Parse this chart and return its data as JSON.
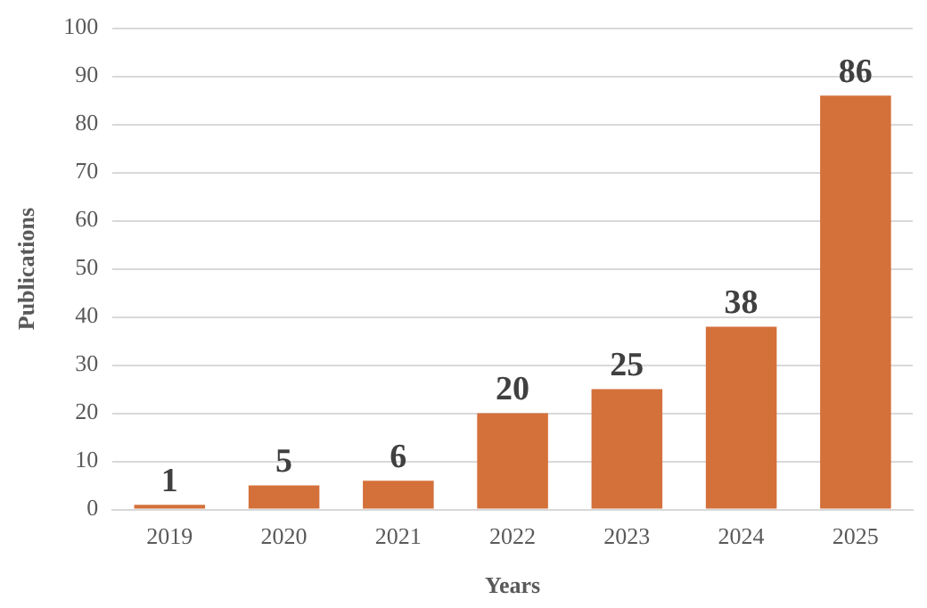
{
  "chart_data": {
    "type": "bar",
    "xlabel": "Years",
    "ylabel": "Publications",
    "categories": [
      "2019",
      "2020",
      "2021",
      "2022",
      "2023",
      "2024",
      "2025"
    ],
    "values": [
      1,
      5,
      6,
      20,
      25,
      38,
      86
    ],
    "color": "#d4703a",
    "ylim": [
      0,
      100
    ],
    "yticks": [
      0,
      10,
      20,
      30,
      40,
      50,
      60,
      70,
      80,
      90,
      100
    ],
    "grid": "y",
    "data_labels": true
  }
}
